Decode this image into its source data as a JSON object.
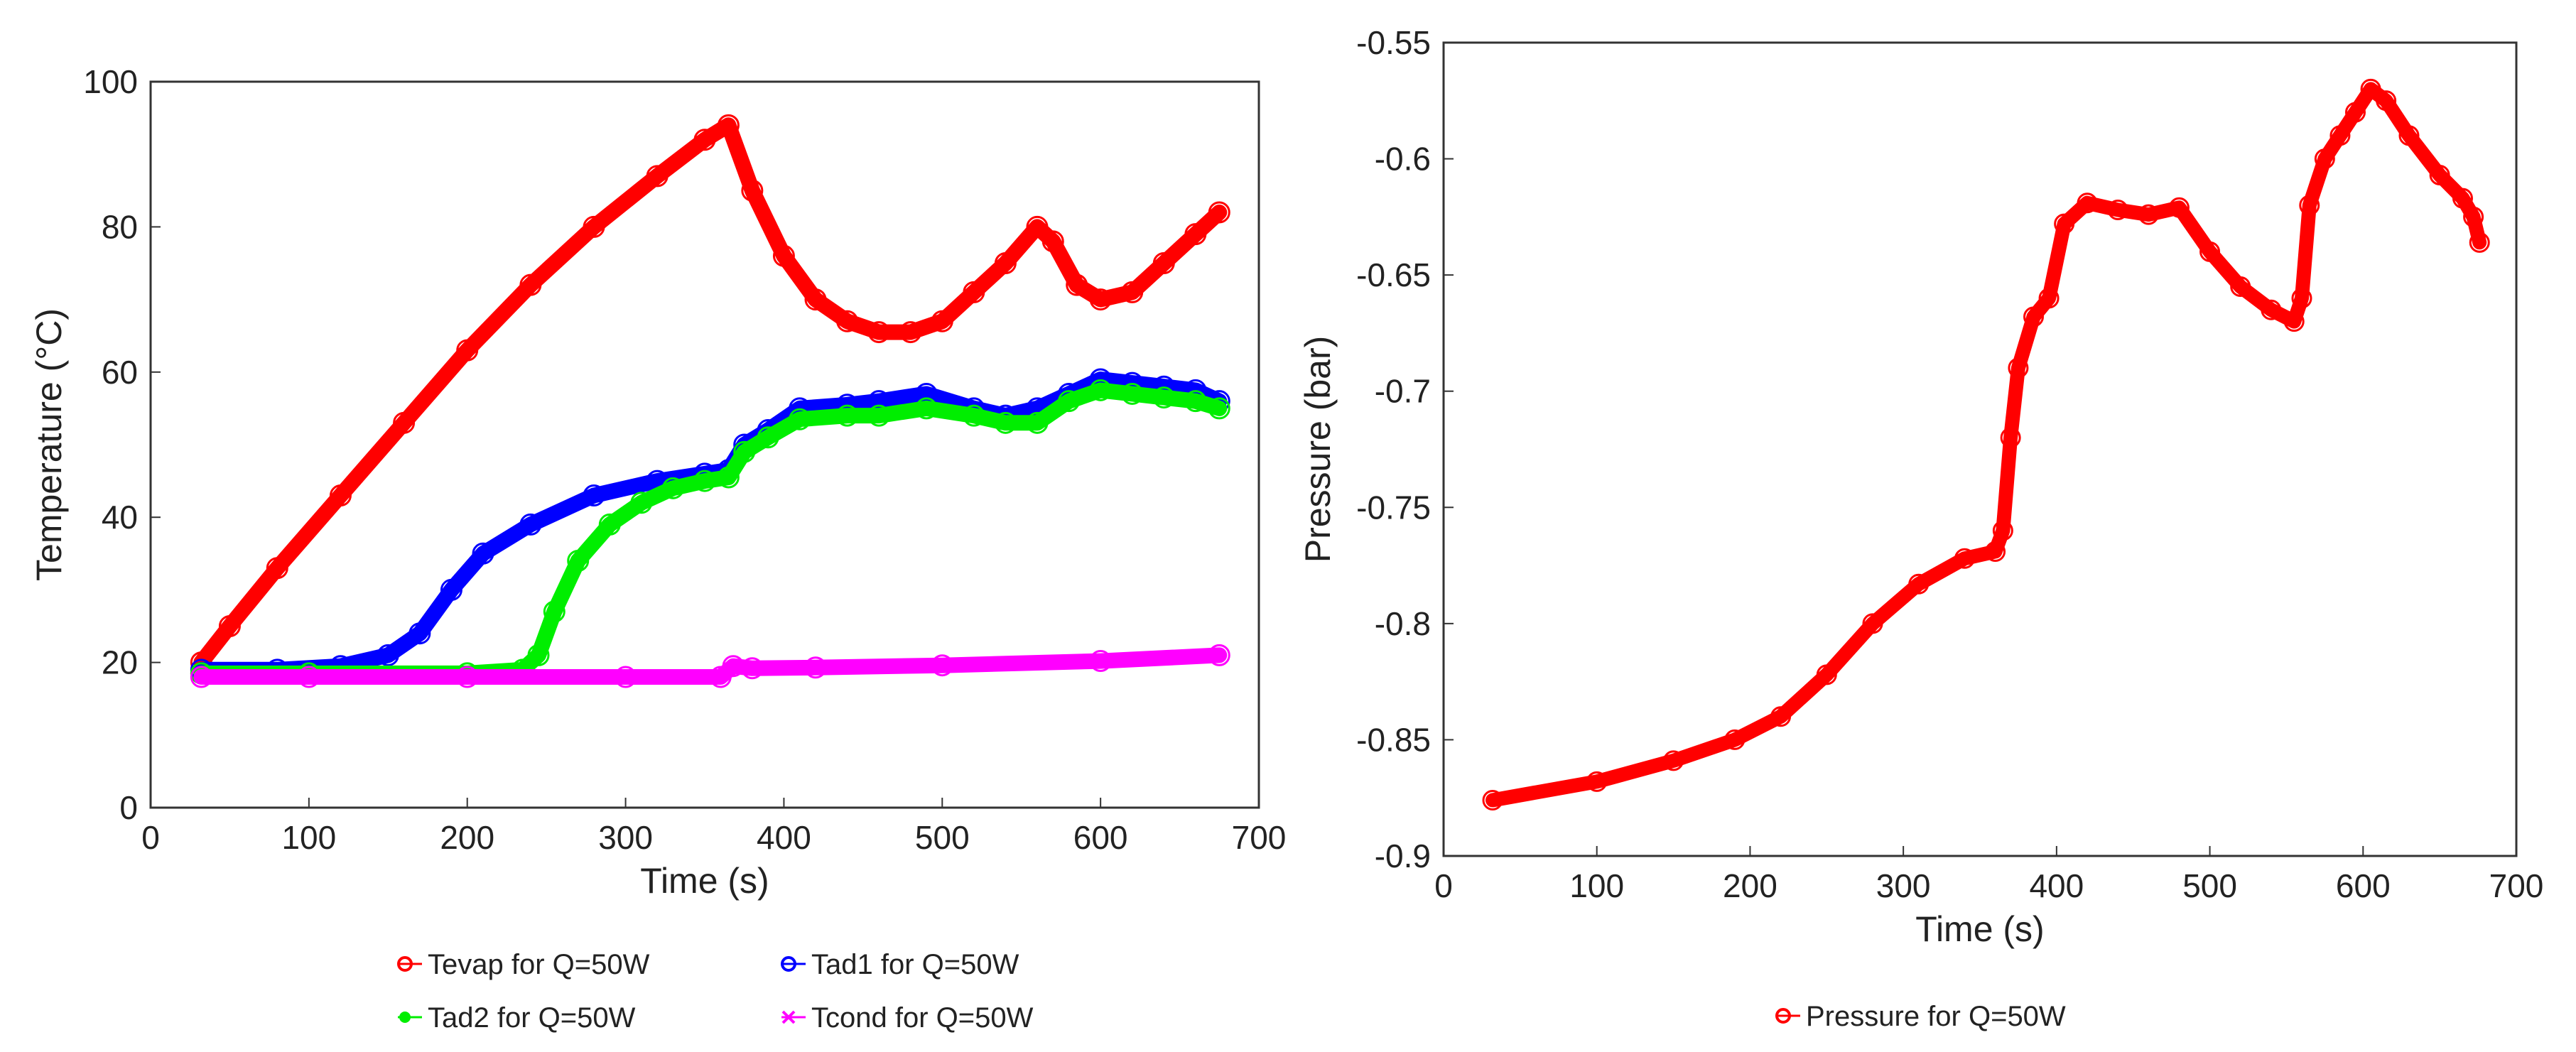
{
  "chart_data": [
    {
      "type": "scatter",
      "title": "",
      "xlabel": "Time (s)",
      "ylabel": "Temperature (°C)",
      "xlim": [
        0,
        700
      ],
      "ylim": [
        0,
        100
      ],
      "xticks": [
        "0",
        "100",
        "200",
        "300",
        "400",
        "500",
        "600",
        "700"
      ],
      "yticks": [
        "0",
        "20",
        "40",
        "60",
        "80",
        "100"
      ],
      "legend_position": "bottom",
      "series": [
        {
          "name": "Tevap for Q=50W",
          "color": "#ff0000",
          "marker": "circle",
          "x": [
            32,
            50,
            80,
            120,
            160,
            200,
            240,
            280,
            320,
            350,
            365,
            380,
            400,
            420,
            440,
            460,
            480,
            500,
            520,
            540,
            560,
            570,
            585,
            600,
            620,
            640,
            660,
            675
          ],
          "y": [
            20,
            25,
            33,
            43,
            53,
            63,
            72,
            80,
            87,
            92,
            94,
            85,
            76,
            70,
            67,
            65.5,
            65.5,
            67,
            71,
            75,
            80,
            78,
            72,
            70,
            71,
            75,
            79,
            82
          ]
        },
        {
          "name": "Tad1 for Q=50W",
          "color": "#0000ff",
          "marker": "circle",
          "x": [
            32,
            80,
            120,
            150,
            170,
            190,
            210,
            240,
            280,
            320,
            350,
            365,
            375,
            390,
            410,
            440,
            460,
            490,
            520,
            540,
            560,
            580,
            600,
            620,
            640,
            660,
            675
          ],
          "y": [
            19,
            19,
            19.5,
            21,
            24,
            30,
            35,
            39,
            43,
            45,
            46,
            46.5,
            50,
            52,
            55,
            55.5,
            56,
            57,
            55,
            54,
            55,
            57,
            59,
            58.5,
            58,
            57.5,
            56
          ]
        },
        {
          "name": "Tad2 for Q=50W",
          "color": "#00ee00",
          "marker": "dot",
          "x": [
            32,
            100,
            200,
            235,
            245,
            255,
            270,
            290,
            310,
            330,
            350,
            365,
            375,
            390,
            410,
            440,
            460,
            490,
            520,
            540,
            560,
            580,
            600,
            620,
            640,
            660,
            675
          ],
          "y": [
            18.5,
            18.5,
            18.5,
            19,
            21,
            27,
            34,
            39,
            42,
            44,
            45,
            45.5,
            49,
            51,
            53.5,
            54,
            54,
            55,
            54,
            53,
            53,
            56,
            57.5,
            57,
            56.5,
            56,
            55
          ]
        },
        {
          "name": "Tcond for Q=50W",
          "color": "#ff00ff",
          "marker": "x",
          "x": [
            32,
            100,
            200,
            300,
            360,
            368,
            380,
            420,
            500,
            600,
            675
          ],
          "y": [
            18,
            18,
            18,
            18,
            18,
            19.5,
            19.2,
            19.3,
            19.6,
            20.2,
            21
          ]
        }
      ]
    },
    {
      "type": "scatter",
      "title": "",
      "xlabel": "Time (s)",
      "ylabel": "Pressure (bar)",
      "xlim": [
        0,
        700
      ],
      "ylim": [
        -0.9,
        -0.55
      ],
      "xticks": [
        "0",
        "100",
        "200",
        "300",
        "400",
        "500",
        "600",
        "700"
      ],
      "yticks": [
        "-0.9",
        "-0.85",
        "-0.8",
        "-0.75",
        "-0.7",
        "-0.65",
        "-0.6",
        "-0.55"
      ],
      "legend_position": "bottom",
      "series": [
        {
          "name": "Pressure for Q=50W",
          "color": "#ff0000",
          "marker": "circle",
          "x": [
            32,
            100,
            150,
            190,
            220,
            250,
            280,
            310,
            340,
            360,
            365,
            370,
            375,
            385,
            395,
            405,
            420,
            440,
            460,
            480,
            500,
            520,
            540,
            555,
            560,
            565,
            575,
            585,
            595,
            605,
            615,
            630,
            650,
            665,
            672,
            676
          ],
          "y": [
            -0.876,
            -0.868,
            -0.859,
            -0.85,
            -0.84,
            -0.822,
            -0.8,
            -0.783,
            -0.772,
            -0.769,
            -0.76,
            -0.72,
            -0.69,
            -0.668,
            -0.66,
            -0.628,
            -0.619,
            -0.622,
            -0.624,
            -0.621,
            -0.64,
            -0.655,
            -0.665,
            -0.67,
            -0.66,
            -0.62,
            -0.6,
            -0.59,
            -0.58,
            -0.57,
            -0.575,
            -0.59,
            -0.607,
            -0.617,
            -0.625,
            -0.636
          ]
        }
      ]
    }
  ]
}
